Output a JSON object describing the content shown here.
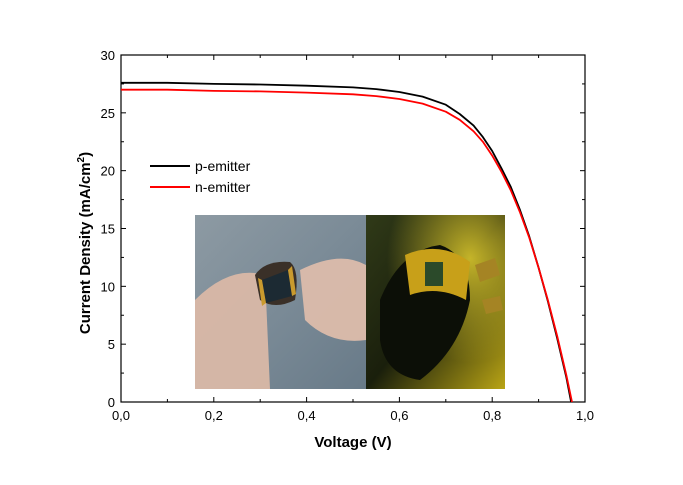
{
  "chart_data": {
    "type": "line",
    "title": "",
    "xlabel": "Voltage (V)",
    "ylabel_main": "Current  Density (mA/cm",
    "ylabel_sup": "2",
    "ylabel_close": ")",
    "xlim": [
      0.0,
      1.0
    ],
    "ylim": [
      0,
      30
    ],
    "x_ticks": [
      0.0,
      0.2,
      0.4,
      0.6,
      0.8,
      1.0
    ],
    "x_tick_labels": [
      "0,0",
      "0,2",
      "0,4",
      "0,6",
      "0,8",
      "1,0"
    ],
    "y_ticks": [
      0,
      5,
      10,
      15,
      20,
      25,
      30
    ],
    "y_tick_labels": [
      "0",
      "5",
      "10",
      "15",
      "20",
      "25",
      "30"
    ],
    "grid": false,
    "legend_position": "upper-left",
    "series": [
      {
        "name": "p-emitter",
        "color": "#000000",
        "x": [
          0.0,
          0.1,
          0.2,
          0.3,
          0.4,
          0.5,
          0.55,
          0.6,
          0.65,
          0.7,
          0.73,
          0.76,
          0.78,
          0.8,
          0.82,
          0.84,
          0.86,
          0.88,
          0.9,
          0.92,
          0.94,
          0.96,
          0.97
        ],
        "y": [
          27.6,
          27.6,
          27.5,
          27.45,
          27.35,
          27.2,
          27.05,
          26.8,
          26.4,
          25.7,
          24.9,
          23.9,
          22.9,
          21.7,
          20.2,
          18.6,
          16.6,
          14.3,
          11.6,
          8.7,
          5.5,
          2.1,
          0
        ]
      },
      {
        "name": "n-emitter",
        "color": "#ff0000",
        "x": [
          0.0,
          0.1,
          0.2,
          0.3,
          0.4,
          0.5,
          0.55,
          0.6,
          0.65,
          0.7,
          0.73,
          0.76,
          0.78,
          0.8,
          0.82,
          0.84,
          0.86,
          0.88,
          0.9,
          0.92,
          0.94,
          0.96,
          0.972
        ],
        "y": [
          27.0,
          27.0,
          26.9,
          26.85,
          26.75,
          26.6,
          26.45,
          26.2,
          25.8,
          25.1,
          24.4,
          23.4,
          22.5,
          21.3,
          19.9,
          18.3,
          16.4,
          14.2,
          11.6,
          8.8,
          5.7,
          2.3,
          0
        ]
      }
    ]
  },
  "inset_photo": {
    "left_panel": {
      "background": "#7a8a95",
      "description_icon": "hand-bending-flexible-cell"
    },
    "right_panel": {
      "background": "#1a1f0c",
      "description_icon": "flexible-solar-cell-yellow-light"
    }
  }
}
